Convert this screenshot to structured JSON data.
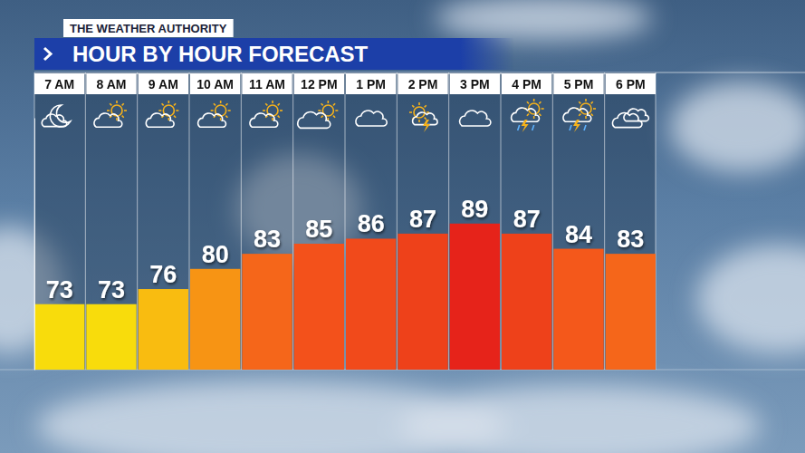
{
  "chart_data": {
    "type": "bar",
    "title": "HOUR BY HOUR FORECAST",
    "subtitle": "THE WEATHER AUTHORITY",
    "categories": [
      "7 AM",
      "8 AM",
      "9 AM",
      "10 AM",
      "11 AM",
      "12 PM",
      "1 PM",
      "2 PM",
      "3 PM",
      "4 PM",
      "5 PM",
      "6 PM"
    ],
    "values": [
      73,
      73,
      76,
      80,
      83,
      85,
      86,
      87,
      89,
      87,
      84,
      83
    ],
    "colors": [
      "#f8dc0c",
      "#f8dc0c",
      "#f9bc10",
      "#f79414",
      "#f5661a",
      "#f3511b",
      "#f14a1b",
      "#ee411a",
      "#e6231a",
      "#ee411a",
      "#f4581b",
      "#f5661a"
    ],
    "ylim": [
      60,
      110
    ],
    "tick_labels": false,
    "data_labels": true
  }
}
